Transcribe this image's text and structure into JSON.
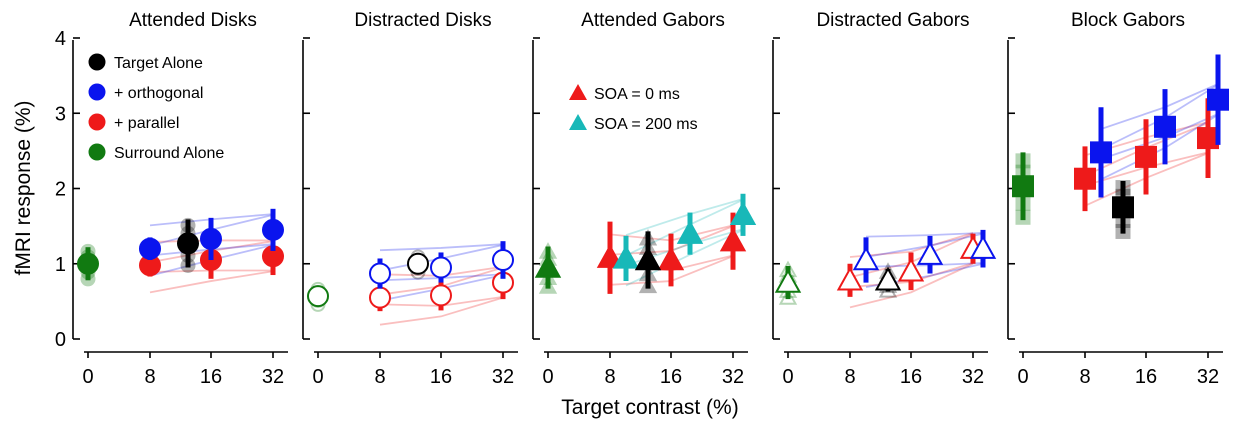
{
  "figure": {
    "ylabel": "fMRI response (%)",
    "xlabel": "Target contrast (%)"
  },
  "colors": {
    "target": "#000000",
    "orthogonal": "#0a14ee",
    "parallel": "#ee1a1a",
    "surround": "#117a11",
    "soa0": "#ee1a1a",
    "soa200": "#18b8b8"
  },
  "legend_disks": [
    {
      "label": "Target Alone",
      "color_key": "target"
    },
    {
      "label": "+ orthogonal",
      "color_key": "orthogonal"
    },
    {
      "label": "+ parallel",
      "color_key": "parallel"
    },
    {
      "label": "Surround Alone",
      "color_key": "surround"
    }
  ],
  "legend_gabors": [
    {
      "label": "SOA = 0 ms",
      "color_key": "soa0"
    },
    {
      "label": "SOA = 200 ms",
      "color_key": "soa200"
    }
  ],
  "chart_data": [
    {
      "type": "scatter",
      "title": "Attended Disks",
      "marker": "circle",
      "filled": true,
      "xticks": [
        "0",
        "8",
        "16",
        "32"
      ],
      "yticks": [
        "0",
        "1",
        "2",
        "3",
        "4"
      ],
      "ylim": [
        0,
        4
      ],
      "series": [
        {
          "name": "Surround Alone",
          "color_key": "surround",
          "x": [
            0
          ],
          "y": [
            1.0
          ],
          "err": [
            0.22
          ]
        },
        {
          "name": "+ parallel",
          "color_key": "parallel",
          "x": [
            8,
            16,
            32
          ],
          "y": [
            0.98,
            1.05,
            1.1
          ],
          "err": [
            0.15,
            0.25,
            0.25
          ]
        },
        {
          "name": "+ orthogonal",
          "color_key": "orthogonal",
          "x": [
            8,
            16,
            32
          ],
          "y": [
            1.2,
            1.33,
            1.45
          ],
          "err": [
            0.15,
            0.28,
            0.28
          ]
        },
        {
          "name": "Target Alone",
          "color_key": "target",
          "x": [
            14
          ],
          "y": [
            1.27
          ],
          "err": [
            0.32
          ]
        }
      ]
    },
    {
      "type": "scatter",
      "title": "Distracted Disks",
      "marker": "circle",
      "filled": false,
      "xticks": [
        "0",
        "8",
        "16",
        "32"
      ],
      "yticks": [],
      "ylim": [
        0,
        4
      ],
      "series": [
        {
          "name": "Surround Alone",
          "color_key": "surround",
          "x": [
            0
          ],
          "y": [
            0.57
          ],
          "err": [
            0.12
          ]
        },
        {
          "name": "+ parallel",
          "color_key": "parallel",
          "x": [
            8,
            16,
            32
          ],
          "y": [
            0.55,
            0.58,
            0.75
          ],
          "err": [
            0.18,
            0.2,
            0.22
          ]
        },
        {
          "name": "+ orthogonal",
          "color_key": "orthogonal",
          "x": [
            8,
            16,
            32
          ],
          "y": [
            0.87,
            0.95,
            1.05
          ],
          "err": [
            0.2,
            0.2,
            0.25
          ]
        },
        {
          "name": "Target Alone",
          "color_key": "target",
          "x": [
            14
          ],
          "y": [
            1.0
          ],
          "err": [
            0.12
          ]
        }
      ]
    },
    {
      "type": "scatter",
      "title": "Attended Gabors",
      "marker": "triangle",
      "filled": true,
      "xticks": [
        "0",
        "8",
        "16",
        "32"
      ],
      "yticks": [],
      "ylim": [
        0,
        4
      ],
      "series": [
        {
          "name": "Surround Alone",
          "color_key": "surround",
          "x": [
            0
          ],
          "y": [
            0.95
          ],
          "err": [
            0.28
          ]
        },
        {
          "name": "SOA = 0 ms",
          "color_key": "soa0",
          "x": [
            8,
            16,
            32
          ],
          "y": [
            1.08,
            1.05,
            1.3
          ],
          "err": [
            0.48,
            0.35,
            0.38
          ]
        },
        {
          "name": "SOA = 200 ms",
          "color_key": "soa200",
          "x": [
            9.5,
            20,
            36
          ],
          "y": [
            1.07,
            1.4,
            1.65
          ],
          "err": [
            0.3,
            0.28,
            0.28
          ]
        },
        {
          "name": "Target Alone",
          "color_key": "target",
          "x": [
            14
          ],
          "y": [
            1.05
          ],
          "err": [
            0.38
          ]
        }
      ]
    },
    {
      "type": "scatter",
      "title": "Distracted Gabors",
      "marker": "triangle",
      "filled": false,
      "xticks": [
        "0",
        "8",
        "16",
        "32"
      ],
      "yticks": [],
      "ylim": [
        0,
        4
      ],
      "series": [
        {
          "name": "Surround Alone",
          "color_key": "surround",
          "x": [
            0
          ],
          "y": [
            0.75
          ],
          "err": [
            0.22
          ]
        },
        {
          "name": "SOA = 0 ms",
          "color_key": "soa0",
          "x": [
            8,
            16,
            32
          ],
          "y": [
            0.78,
            0.9,
            1.2
          ],
          "err": [
            0.22,
            0.25,
            0.2
          ]
        },
        {
          "name": "SOA = 200 ms",
          "color_key": "orthogonal",
          "x": [
            9.5,
            20,
            36
          ],
          "y": [
            1.05,
            1.12,
            1.2
          ],
          "err": [
            0.3,
            0.25,
            0.25
          ]
        },
        {
          "name": "Target Alone",
          "color_key": "target",
          "x": [
            14
          ],
          "y": [
            0.78
          ],
          "err": [
            0.15
          ]
        }
      ]
    },
    {
      "type": "scatter",
      "title": "Block Gabors",
      "marker": "square",
      "filled": true,
      "xticks": [
        "0",
        "8",
        "16",
        "32"
      ],
      "yticks": [],
      "ylim": [
        0,
        4
      ],
      "series": [
        {
          "name": "Surround Alone",
          "color_key": "surround",
          "x": [
            0
          ],
          "y": [
            2.03
          ],
          "err": [
            0.45
          ]
        },
        {
          "name": "+ parallel",
          "color_key": "parallel",
          "x": [
            8,
            16,
            32
          ],
          "y": [
            2.13,
            2.42,
            2.67
          ],
          "err": [
            0.43,
            0.5,
            0.53
          ]
        },
        {
          "name": "+ orthogonal",
          "color_key": "orthogonal",
          "x": [
            9.5,
            20,
            36
          ],
          "y": [
            2.48,
            2.82,
            3.18
          ],
          "err": [
            0.6,
            0.5,
            0.6
          ]
        },
        {
          "name": "Target Alone",
          "color_key": "target",
          "x": [
            14
          ],
          "y": [
            1.75
          ],
          "err": [
            0.35
          ]
        }
      ]
    }
  ]
}
